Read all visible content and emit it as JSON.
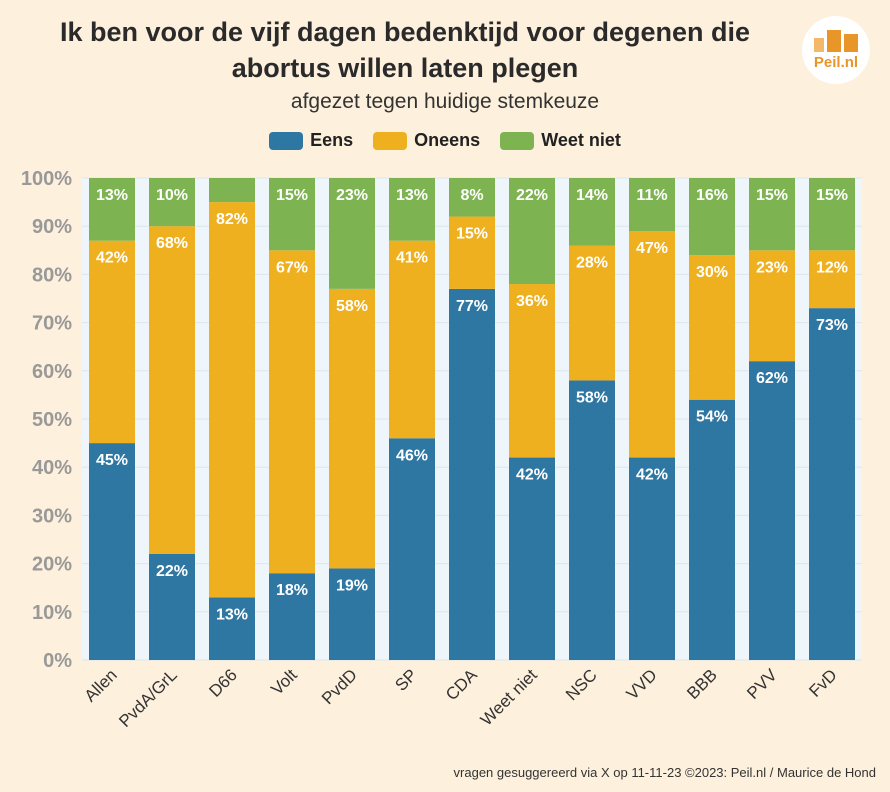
{
  "header": {
    "title_line1": "Ik ben voor de vijf dagen bedenktijd voor degenen die",
    "title_line2": "abortus willen laten plegen",
    "subtitle": "afgezet tegen huidige stemkeuze",
    "logo_text": "Peil.nl",
    "logo_icon": "bar-chart-icon"
  },
  "colors": {
    "eens": "#2f77a3",
    "oneens": "#efb01f",
    "weet_niet": "#7db350",
    "logo": "#e8962a"
  },
  "footer": {
    "credit": "vragen gesuggereerd via X op 11-11-23 ©2023: Peil.nl / Maurice de Hond"
  },
  "chart_data": {
    "type": "bar",
    "stacked": true,
    "title": "Ik ben voor de vijf dagen bedenktijd voor degenen die abortus willen laten plegen",
    "subtitle": "afgezet tegen huidige stemkeuze",
    "legend_position": "top",
    "ylim": [
      0,
      100
    ],
    "yticks": [
      "0%",
      "10%",
      "20%",
      "30%",
      "40%",
      "50%",
      "60%",
      "70%",
      "80%",
      "90%",
      "100%"
    ],
    "categories": [
      "Allen",
      "PvdA/GrL",
      "D66",
      "Volt",
      "PvdD",
      "SP",
      "CDA",
      "Weet niet",
      "NSC",
      "VVD",
      "BBB",
      "PVV",
      "FvD"
    ],
    "series": [
      {
        "name": "Eens",
        "values": [
          45,
          22,
          13,
          18,
          19,
          46,
          77,
          42,
          58,
          42,
          54,
          62,
          73
        ],
        "labels": [
          "45%",
          "22%",
          "13%",
          "18%",
          "19%",
          "46%",
          "77%",
          "42%",
          "58%",
          "42%",
          "54%",
          "62%",
          "73%"
        ]
      },
      {
        "name": "Oneens",
        "values": [
          42,
          68,
          82,
          67,
          58,
          41,
          15,
          36,
          28,
          47,
          30,
          23,
          12
        ],
        "labels": [
          "42%",
          "68%",
          "82%",
          "67%",
          "58%",
          "41%",
          "15%",
          "36%",
          "28%",
          "47%",
          "30%",
          "23%",
          "12%"
        ]
      },
      {
        "name": "Weet niet",
        "values": [
          13,
          10,
          5,
          15,
          23,
          13,
          8,
          22,
          14,
          11,
          16,
          15,
          15
        ],
        "labels": [
          "13%",
          "10%",
          "",
          "15%",
          "23%",
          "13%",
          "8%",
          "22%",
          "14%",
          "11%",
          "16%",
          "15%",
          "15%"
        ]
      }
    ]
  }
}
